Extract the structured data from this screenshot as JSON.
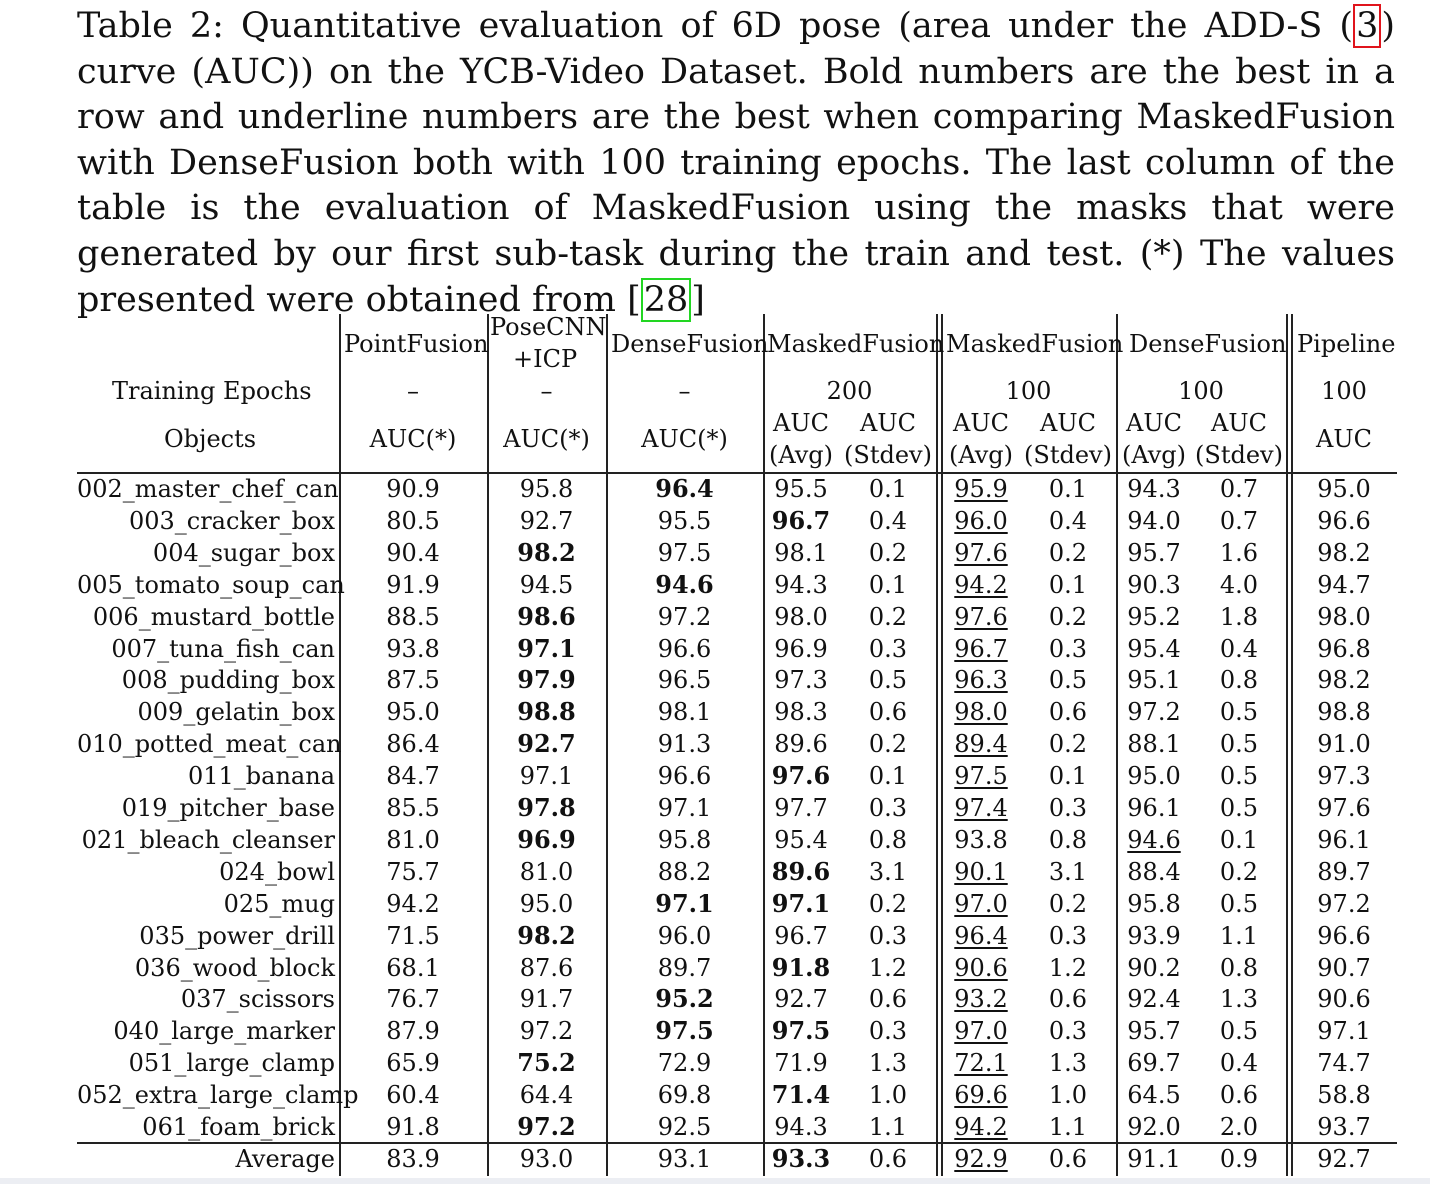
{
  "caption": {
    "prefix": "Table 2: Quantitative evaluation of 6D pose (area under the ADD-S (",
    "cite1": "3",
    "middle": ") curve (AUC)) on the YCB-Video Dataset. Bold numbers are the best in a row and underline numbers are the best when comparing MaskedFusion with DenseFusion both with 100 training epochs. The last column of the table is the evaluation of MaskedFusion using the masks that were generated by our first sub-task during the train and test. (*) The values presented were obtained from [",
    "cite2": "28",
    "suffix": "]"
  },
  "header": {
    "row_label_epochs": "Training Epochs",
    "row_label_objects": "Objects",
    "methods": [
      "PointFusion",
      "PoseCNN",
      "+ICP",
      "DenseFusion",
      "MaskedFusion",
      "MaskedFusion",
      "DenseFusion",
      "Pipeline"
    ],
    "epochs": [
      "–",
      "–",
      "–",
      "200",
      "100",
      "100",
      "100"
    ],
    "metric_single": "AUC(*)",
    "metric_auc": "AUC",
    "metric_avg": "(Avg)",
    "metric_stdev": "(Stdev)"
  },
  "rows": [
    {
      "name": "002_master_chef_can",
      "v": [
        "90.9",
        "95.8",
        "96.4",
        "95.5",
        "0.1",
        "95.9",
        "0.1",
        "94.3",
        "0.7",
        "95.0"
      ],
      "bold": [
        2
      ],
      "ul": [
        5
      ]
    },
    {
      "name": "003_cracker_box",
      "v": [
        "80.5",
        "92.7",
        "95.5",
        "96.7",
        "0.4",
        "96.0",
        "0.4",
        "94.0",
        "0.7",
        "96.6"
      ],
      "bold": [
        3
      ],
      "ul": [
        5
      ]
    },
    {
      "name": "004_sugar_box",
      "v": [
        "90.4",
        "98.2",
        "97.5",
        "98.1",
        "0.2",
        "97.6",
        "0.2",
        "95.7",
        "1.6",
        "98.2"
      ],
      "bold": [
        1
      ],
      "ul": [
        5
      ]
    },
    {
      "name": "005_tomato_soup_can",
      "v": [
        "91.9",
        "94.5",
        "94.6",
        "94.3",
        "0.1",
        "94.2",
        "0.1",
        "90.3",
        "4.0",
        "94.7"
      ],
      "bold": [
        2
      ],
      "ul": [
        5
      ]
    },
    {
      "name": "006_mustard_bottle",
      "v": [
        "88.5",
        "98.6",
        "97.2",
        "98.0",
        "0.2",
        "97.6",
        "0.2",
        "95.2",
        "1.8",
        "98.0"
      ],
      "bold": [
        1
      ],
      "ul": [
        5
      ]
    },
    {
      "name": "007_tuna_fish_can",
      "v": [
        "93.8",
        "97.1",
        "96.6",
        "96.9",
        "0.3",
        "96.7",
        "0.3",
        "95.4",
        "0.4",
        "96.8"
      ],
      "bold": [
        1
      ],
      "ul": [
        5
      ]
    },
    {
      "name": "008_pudding_box",
      "v": [
        "87.5",
        "97.9",
        "96.5",
        "97.3",
        "0.5",
        "96.3",
        "0.5",
        "95.1",
        "0.8",
        "98.2"
      ],
      "bold": [
        1
      ],
      "ul": [
        5
      ]
    },
    {
      "name": "009_gelatin_box",
      "v": [
        "95.0",
        "98.8",
        "98.1",
        "98.3",
        "0.6",
        "98.0",
        "0.6",
        "97.2",
        "0.5",
        "98.8"
      ],
      "bold": [
        1
      ],
      "ul": [
        5
      ]
    },
    {
      "name": "010_potted_meat_can",
      "v": [
        "86.4",
        "92.7",
        "91.3",
        "89.6",
        "0.2",
        "89.4",
        "0.2",
        "88.1",
        "0.5",
        "91.0"
      ],
      "bold": [
        1
      ],
      "ul": [
        5
      ]
    },
    {
      "name": "011_banana",
      "v": [
        "84.7",
        "97.1",
        "96.6",
        "97.6",
        "0.1",
        "97.5",
        "0.1",
        "95.0",
        "0.5",
        "97.3"
      ],
      "bold": [
        3
      ],
      "ul": [
        5
      ]
    },
    {
      "name": "019_pitcher_base",
      "v": [
        "85.5",
        "97.8",
        "97.1",
        "97.7",
        "0.3",
        "97.4",
        "0.3",
        "96.1",
        "0.5",
        "97.6"
      ],
      "bold": [
        1
      ],
      "ul": [
        5
      ]
    },
    {
      "name": "021_bleach_cleanser",
      "v": [
        "81.0",
        "96.9",
        "95.8",
        "95.4",
        "0.8",
        "93.8",
        "0.8",
        "94.6",
        "0.1",
        "96.1"
      ],
      "bold": [
        1
      ],
      "ul": [
        7
      ]
    },
    {
      "name": "024_bowl",
      "v": [
        "75.7",
        "81.0",
        "88.2",
        "89.6",
        "3.1",
        "90.1",
        "3.1",
        "88.4",
        "0.2",
        "89.7"
      ],
      "bold": [
        3
      ],
      "ul": [
        5
      ]
    },
    {
      "name": "025_mug",
      "v": [
        "94.2",
        "95.0",
        "97.1",
        "97.1",
        "0.2",
        "97.0",
        "0.2",
        "95.8",
        "0.5",
        "97.2"
      ],
      "bold": [
        2,
        3
      ],
      "ul": [
        5
      ]
    },
    {
      "name": "035_power_drill",
      "v": [
        "71.5",
        "98.2",
        "96.0",
        "96.7",
        "0.3",
        "96.4",
        "0.3",
        "93.9",
        "1.1",
        "96.6"
      ],
      "bold": [
        1
      ],
      "ul": [
        5
      ]
    },
    {
      "name": "036_wood_block",
      "v": [
        "68.1",
        "87.6",
        "89.7",
        "91.8",
        "1.2",
        "90.6",
        "1.2",
        "90.2",
        "0.8",
        "90.7"
      ],
      "bold": [
        3
      ],
      "ul": [
        5
      ]
    },
    {
      "name": "037_scissors",
      "v": [
        "76.7",
        "91.7",
        "95.2",
        "92.7",
        "0.6",
        "93.2",
        "0.6",
        "92.4",
        "1.3",
        "90.6"
      ],
      "bold": [
        2
      ],
      "ul": [
        5
      ]
    },
    {
      "name": "040_large_marker",
      "v": [
        "87.9",
        "97.2",
        "97.5",
        "97.5",
        "0.3",
        "97.0",
        "0.3",
        "95.7",
        "0.5",
        "97.1"
      ],
      "bold": [
        2,
        3
      ],
      "ul": [
        5
      ]
    },
    {
      "name": "051_large_clamp",
      "v": [
        "65.9",
        "75.2",
        "72.9",
        "71.9",
        "1.3",
        "72.1",
        "1.3",
        "69.7",
        "0.4",
        "74.7"
      ],
      "bold": [
        1
      ],
      "ul": [
        5
      ]
    },
    {
      "name": "052_extra_large_clamp",
      "v": [
        "60.4",
        "64.4",
        "69.8",
        "71.4",
        "1.0",
        "69.6",
        "1.0",
        "64.5",
        "0.6",
        "58.8"
      ],
      "bold": [
        3
      ],
      "ul": [
        5
      ]
    },
    {
      "name": "061_foam_brick",
      "v": [
        "91.8",
        "97.2",
        "92.5",
        "94.3",
        "1.1",
        "94.2",
        "1.1",
        "92.0",
        "2.0",
        "93.7"
      ],
      "bold": [
        1
      ],
      "ul": [
        5
      ]
    }
  ],
  "average": {
    "name": "Average",
    "v": [
      "83.9",
      "93.0",
      "93.1",
      "93.3",
      "0.6",
      "92.9",
      "0.6",
      "91.1",
      "0.9",
      "92.7"
    ],
    "bold": [
      3
    ],
    "ul": [
      5
    ]
  }
}
